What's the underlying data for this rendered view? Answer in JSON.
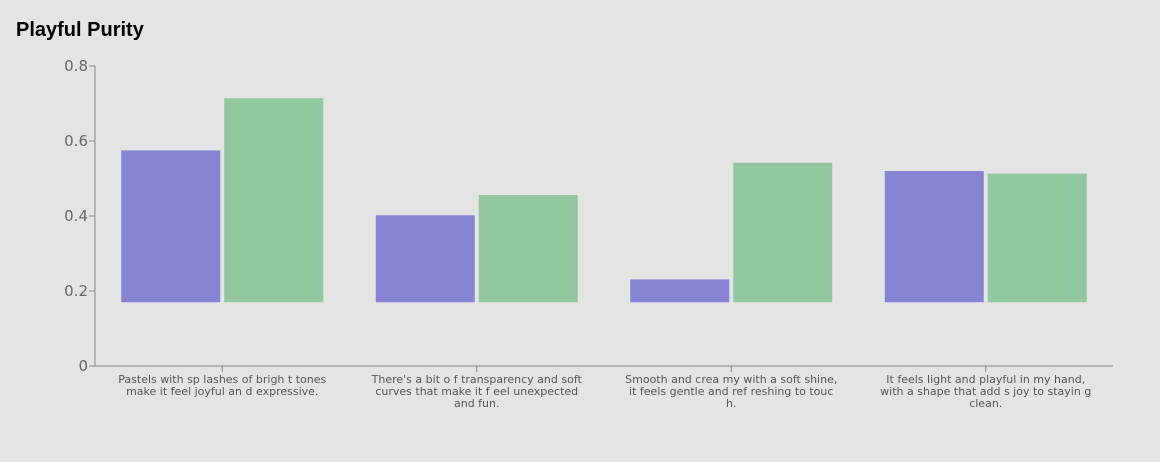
{
  "chart_data": {
    "type": "bar",
    "title": "Playful Purity",
    "xlabel": "",
    "ylabel": "",
    "ylim": [
      0,
      0.8
    ],
    "yticks": [
      0,
      0.2,
      0.4,
      0.6,
      0.8
    ],
    "ytick_labels": [
      "0",
      "0.2",
      "0.4",
      "0.6",
      "0.8"
    ],
    "baseline": 0.17,
    "categories": [
      [
        "Pastels with sp lashes of brigh t tones",
        "make it feel joyful an d expressive."
      ],
      [
        "There's a bit o f transparency and soft",
        "curves that make it f eel unexpected",
        "and fun."
      ],
      [
        "Smooth and crea my with a soft shine,",
        "it feels gentle and ref reshing to touc",
        "h."
      ],
      [
        "It feels light and playful in my hand,",
        "with a shape that add s joy to stayin g",
        "clean."
      ]
    ],
    "series": [
      {
        "values": [
          0.575,
          0.402,
          0.231,
          0.52
        ],
        "color": "#8884d4"
      },
      {
        "values": [
          0.714,
          0.456,
          0.542,
          0.513
        ],
        "color": "#92c8a0"
      }
    ],
    "grid": false,
    "legend": "none"
  }
}
